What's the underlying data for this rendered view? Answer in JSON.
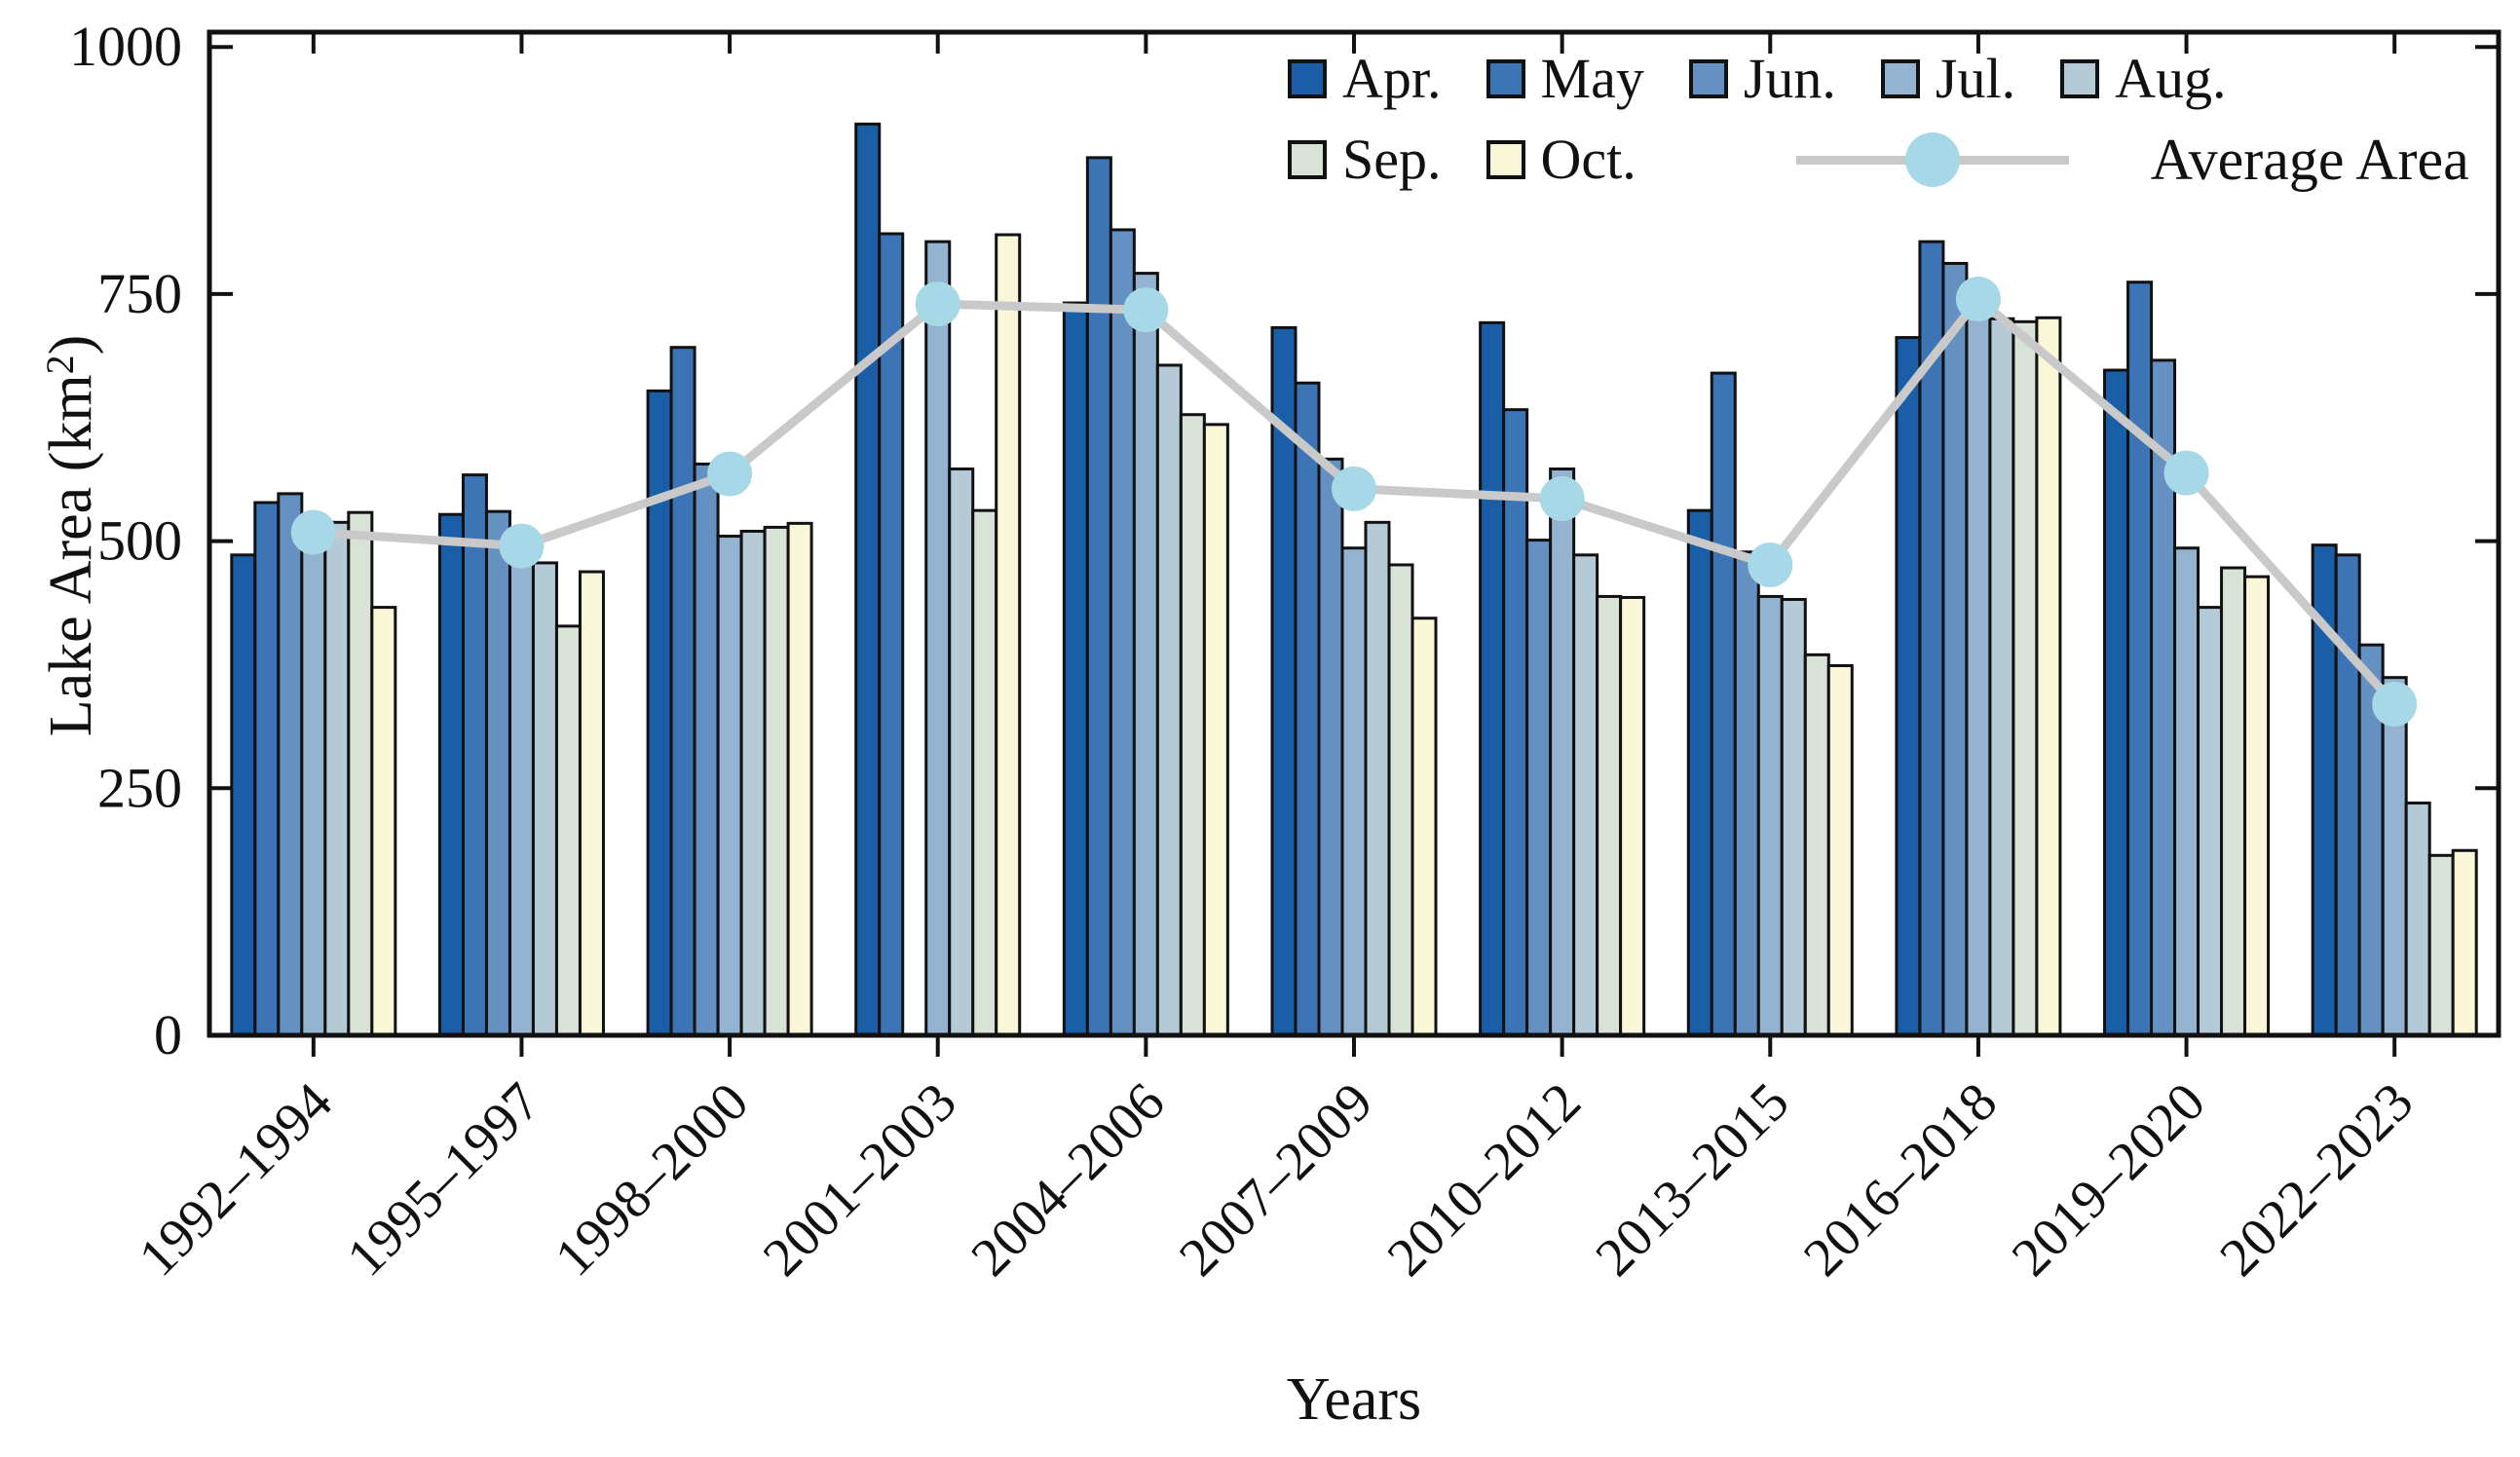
{
  "chart_data": {
    "type": "bar",
    "title": "",
    "xlabel": "Years",
    "ylabel": "Lake Area (km²)",
    "ylabel_parts": {
      "prefix": "Lake Area (km",
      "sup": "2",
      "suffix": ")"
    },
    "ylim": [
      0,
      1015
    ],
    "yticks": [
      0,
      250,
      500,
      750,
      1000
    ],
    "ytick_labels": [
      "0",
      "250",
      "500",
      "750",
      "1000"
    ],
    "grid": "off",
    "legend_position": "top-right-inside",
    "bar_outline_color": "#111111",
    "categories": [
      "1992–1994",
      "1995–1997",
      "1998–2000",
      "2001–2003",
      "2004–2006",
      "2007–2009",
      "2010–2012",
      "2013–2015",
      "2016–2018",
      "2019–2020",
      "2022–2023"
    ],
    "series": [
      {
        "name": "Apr.",
        "color": "#1b5ea8",
        "values": [
          486,
          527,
          652,
          922,
          741,
          716,
          721,
          531,
          706,
          673,
          496
        ]
      },
      {
        "name": "May",
        "color": "#3d74b5",
        "values": [
          539,
          567,
          696,
          811,
          888,
          660,
          633,
          670,
          803,
          762,
          486
        ]
      },
      {
        "name": "Jun.",
        "color": "#6590c2",
        "values": [
          548,
          530,
          578,
          null,
          815,
          583,
          501,
          489,
          781,
          683,
          395
        ]
      },
      {
        "name": "Jul.",
        "color": "#93b3d0",
        "values": [
          508,
          479,
          505,
          803,
          771,
          493,
          573,
          444,
          752,
          493,
          362
        ]
      },
      {
        "name": "Aug.",
        "color": "#b4cad7",
        "values": [
          519,
          478,
          510,
          573,
          678,
          519,
          486,
          441,
          725,
          433,
          235
        ]
      },
      {
        "name": "Sep.",
        "color": "#d9e2d7",
        "values": [
          529,
          414,
          514,
          531,
          628,
          476,
          444,
          385,
          722,
          473,
          182
        ]
      },
      {
        "name": "Oct.",
        "color": "#faf6d8",
        "values": [
          433,
          469,
          518,
          810,
          618,
          422,
          443,
          374,
          726,
          464,
          187
        ]
      }
    ],
    "average_series": {
      "name": "Average Area",
      "line_color": "#c9c9c9",
      "marker_color": "#a6d8e8",
      "values": [
        509,
        495,
        568,
        740,
        734,
        553,
        543,
        476,
        745,
        569,
        335
      ]
    }
  }
}
